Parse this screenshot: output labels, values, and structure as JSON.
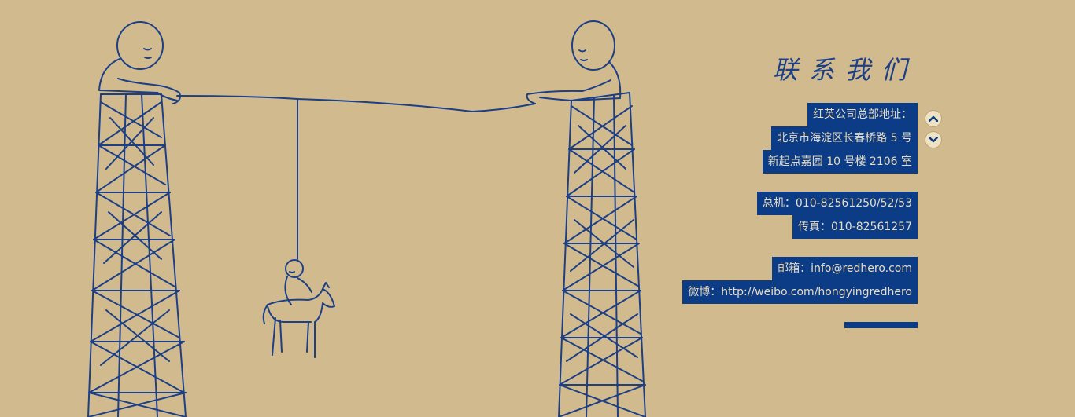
{
  "contact": {
    "title": "联系我们",
    "address_label": "红英公司总部地址：",
    "address_line1": "北京市海淀区长春桥路 5 号",
    "address_line2": "新起点嘉园 10 号楼 2106 室",
    "phone": "总机：010-82561250/52/53",
    "fax": "传真：010-82561257",
    "email": "邮箱：info@redhero.com",
    "weibo": "微博：http://weibo.com/hongyingredhero"
  },
  "controls": {
    "up_icon": "chevron-up-icon",
    "down_icon": "chevron-down-icon"
  },
  "colors": {
    "background": "#d1bb8e",
    "accent": "#0c3c86",
    "text_on_accent": "#e8dcc0",
    "ink": "#1d3f86"
  }
}
